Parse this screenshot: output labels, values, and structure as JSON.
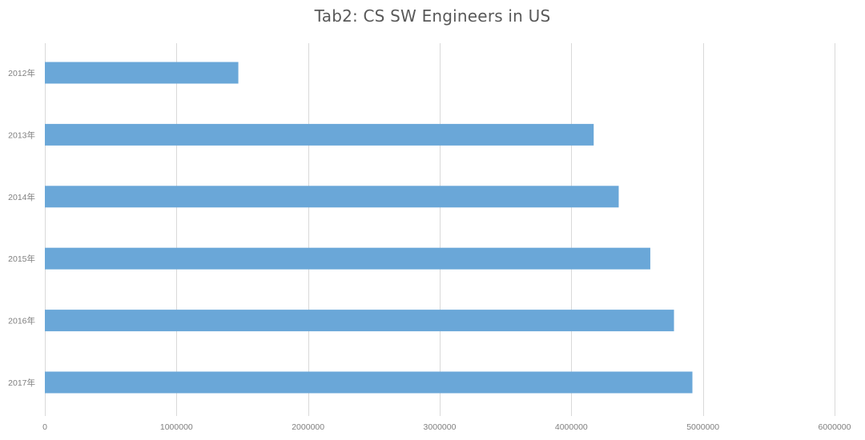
{
  "chart_data": {
    "type": "bar",
    "orientation": "horizontal",
    "title": "Tab2: CS SW Engineers in US",
    "categories": [
      "2012年",
      "2013年",
      "2014年",
      "2015年",
      "2016年",
      "2017年"
    ],
    "values": [
      1470000,
      4170000,
      4360000,
      4600000,
      4780000,
      4920000
    ],
    "xlim": [
      0,
      6000000
    ],
    "xticks": [
      0,
      1000000,
      2000000,
      3000000,
      4000000,
      5000000,
      6000000
    ],
    "xtick_labels": [
      "0",
      "1000000",
      "2000000",
      "3000000",
      "4000000",
      "5000000",
      "6000000"
    ],
    "xlabel": "",
    "ylabel": "",
    "grid": true,
    "bar_color": "#6aa7d8",
    "grid_color": "#d9d9d9",
    "text_color": "#7f7f7f",
    "title_color": "#595959"
  }
}
